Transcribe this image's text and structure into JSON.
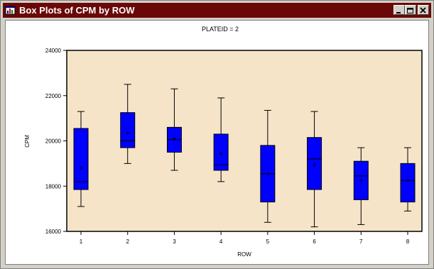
{
  "window": {
    "title": "Box Plots of CPM by ROW",
    "icon": "sas-graph-window-icon",
    "buttons": [
      "minimize",
      "restore",
      "close"
    ]
  },
  "colors": {
    "titlebar": "#6a0808",
    "plot_background": "#f6e4c8",
    "box_fill": "#0000ff"
  },
  "chart_data": {
    "type": "boxplot",
    "title": "PLATEID = 2",
    "xlabel": "ROW",
    "ylabel": "CPM",
    "categories": [
      "1",
      "2",
      "3",
      "4",
      "5",
      "6",
      "7",
      "8"
    ],
    "ylim": [
      16000,
      24000
    ],
    "yticks": [
      16000,
      18000,
      20000,
      22000,
      24000
    ],
    "ytick_labels": [
      "16000",
      "18000",
      "20000",
      "22000",
      "24000"
    ],
    "grid": false,
    "boxes": [
      {
        "category": "1",
        "min": 17100,
        "q1": 17850,
        "median": 18200,
        "q3": 20550,
        "max": 21300,
        "mean": 18800
      },
      {
        "category": "2",
        "min": 19000,
        "q1": 19700,
        "median": 20000,
        "q3": 21250,
        "max": 22500,
        "mean": 20350
      },
      {
        "category": "3",
        "min": 18700,
        "q1": 19500,
        "median": 20050,
        "q3": 20600,
        "max": 22300,
        "mean": 20100
      },
      {
        "category": "4",
        "min": 18200,
        "q1": 18700,
        "median": 18950,
        "q3": 20300,
        "max": 21900,
        "mean": 19450
      },
      {
        "category": "5",
        "min": 16400,
        "q1": 17300,
        "median": 18550,
        "q3": 19800,
        "max": 21350,
        "mean": 18550
      },
      {
        "category": "6",
        "min": 16200,
        "q1": 17850,
        "median": 19200,
        "q3": 20150,
        "max": 21300,
        "mean": 18950
      },
      {
        "category": "7",
        "min": 16300,
        "q1": 17400,
        "median": 18450,
        "q3": 19100,
        "max": 19700,
        "mean": 18250
      },
      {
        "category": "8",
        "min": 16900,
        "q1": 17300,
        "median": 18250,
        "q3": 19000,
        "max": 19700,
        "mean": 18250
      }
    ]
  }
}
